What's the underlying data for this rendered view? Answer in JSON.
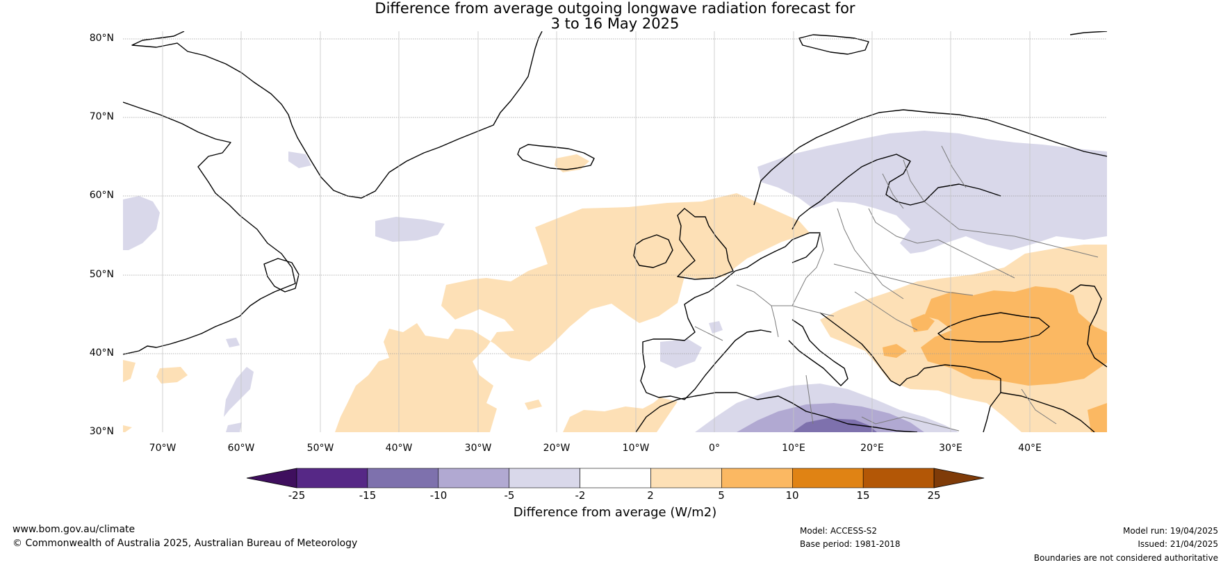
{
  "title_line1": "Difference from average outgoing longwave radiation forecast for",
  "title_line2": "3 to 16 May 2025",
  "lat_labels": [
    "80°N",
    "70°N",
    "60°N",
    "50°N",
    "40°N",
    "30°N"
  ],
  "lon_labels": [
    "70°W",
    "60°W",
    "50°W",
    "40°W",
    "30°W",
    "20°W",
    "10°W",
    "0°",
    "10°E",
    "20°E",
    "30°E",
    "40°E"
  ],
  "colorbar": {
    "label": "Difference from average (W/m2)",
    "ticks": [
      "-25",
      "-15",
      "-10",
      "-5",
      "-2",
      "2",
      "5",
      "10",
      "15",
      "25"
    ],
    "colors": [
      "#3f0f5e",
      "#562886",
      "#7e71ad",
      "#b1a9d2",
      "#d9d8ea",
      "#ffffff",
      "#fde0b6",
      "#fbb862",
      "#e08314",
      "#b35706",
      "#7f3b08"
    ]
  },
  "legend_colors": {
    "ocean": "#ffffff",
    "coast": "#000000",
    "border": "#7a7a7a",
    "grid": "#9a9a9a"
  },
  "footer": {
    "website": "www.bom.gov.au/climate",
    "copyright": "© Commonwealth of Australia 2025, Australian Bureau of Meteorology",
    "model": "Model: ACCESS-S2",
    "base_period": "Base period: 1981-2018",
    "model_run": "Model run: 19/04/2025",
    "issued": "Issued: 21/04/2025",
    "disclaimer": "Boundaries are not considered authoritative"
  }
}
